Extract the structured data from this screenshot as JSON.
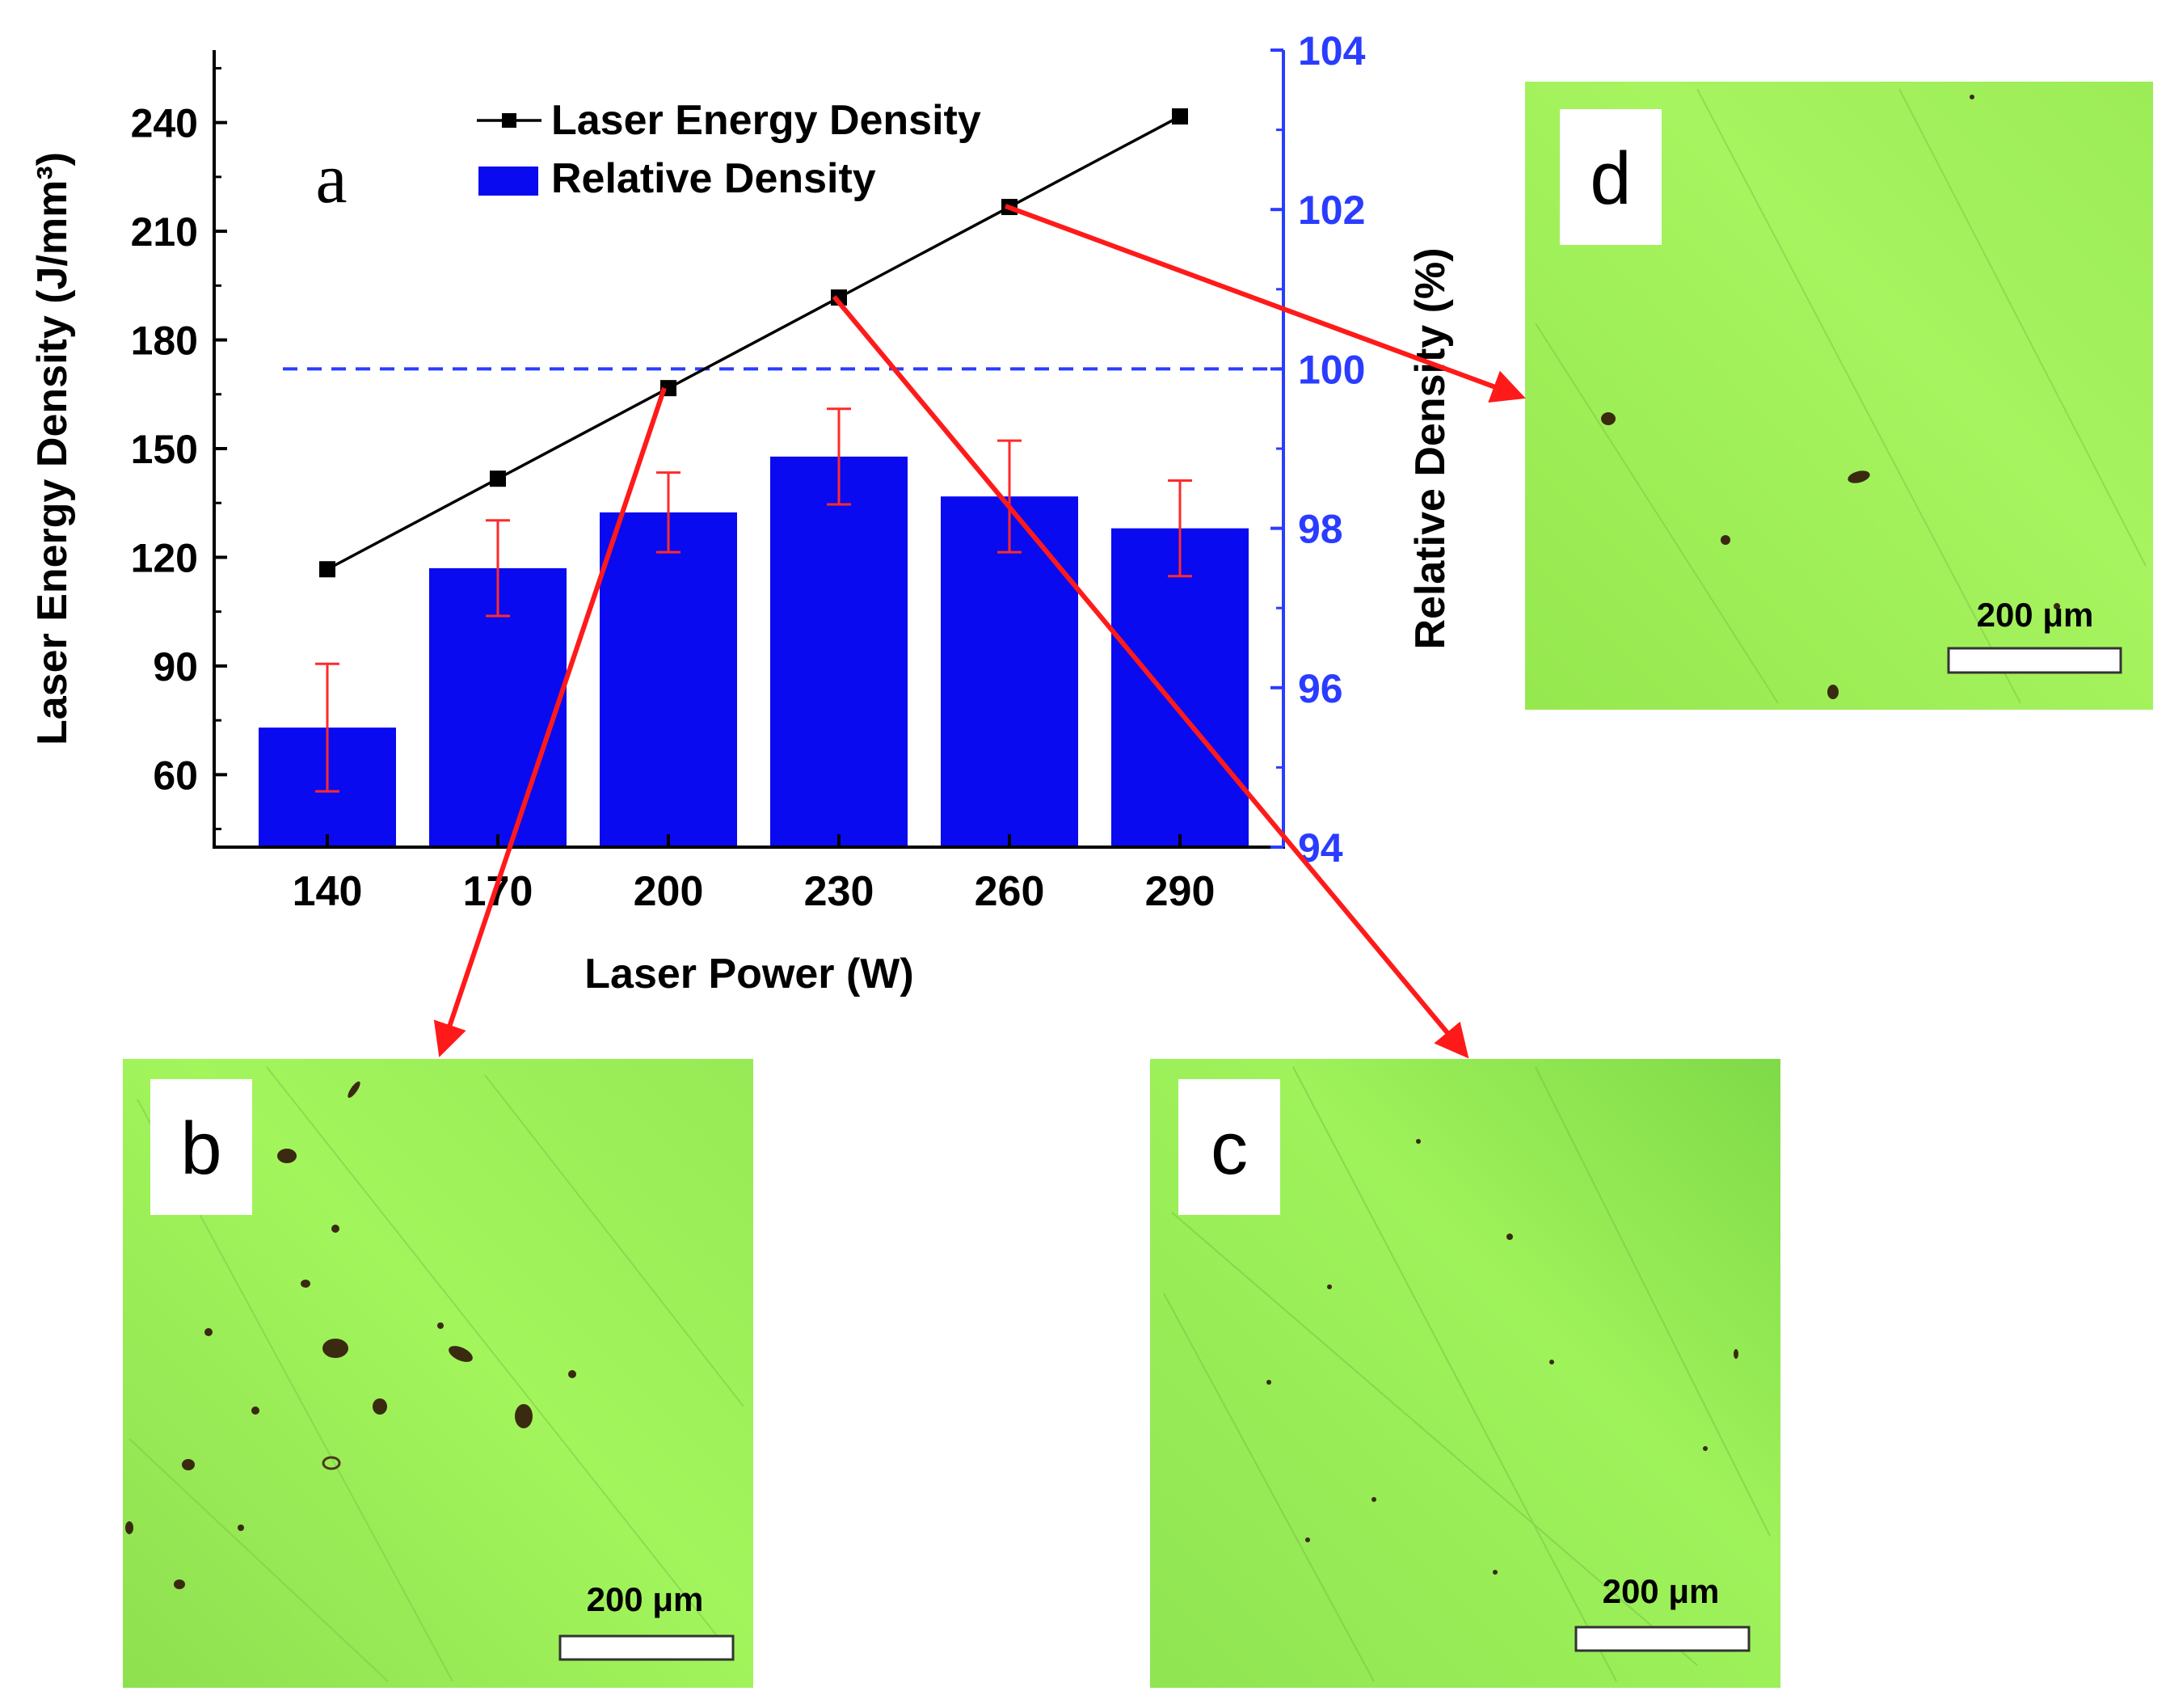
{
  "chart_data": {
    "type": "bar+line",
    "panel_label": "a",
    "categories": [
      "140",
      "170",
      "200",
      "230",
      "260",
      "290"
    ],
    "x": [
      140,
      170,
      200,
      230,
      260,
      290
    ],
    "xlabel": "Laser Power (W)",
    "ylabel_left": "Laser Energy Density (J/mm³)",
    "ylabel_right": "Relative Density (%)",
    "ylim_left": [
      40,
      260
    ],
    "yticks_left": [
      60,
      90,
      120,
      150,
      180,
      210,
      240
    ],
    "ylim_right": [
      94,
      104
    ],
    "yticks_right": [
      94,
      96,
      98,
      100,
      102,
      104
    ],
    "reference_line": {
      "axis": "right",
      "value": 100,
      "style": "dashed",
      "color": "#2a3cff"
    },
    "series": [
      {
        "name": "Laser Energy Density",
        "kind": "line",
        "axis": "left",
        "color": "#000000",
        "marker": "square",
        "values": [
          116.7,
          141.7,
          166.7,
          191.7,
          216.7,
          241.7
        ]
      },
      {
        "name": "Relative Density",
        "kind": "bar",
        "axis": "right",
        "color": "#0a0af0",
        "values": [
          95.5,
          97.5,
          98.2,
          98.9,
          98.4,
          98.0
        ],
        "errors": [
          0.8,
          0.6,
          0.5,
          0.6,
          0.7,
          0.6
        ],
        "error_color": "#ff2a2a"
      }
    ],
    "legend": [
      "Laser Energy Density",
      "Relative Density"
    ],
    "legend_position": "top-center"
  },
  "micrographs": [
    {
      "label": "b",
      "scale_bar": "200 μm",
      "linked_power": 200
    },
    {
      "label": "c",
      "scale_bar": "200 μm",
      "linked_power": 230
    },
    {
      "label": "d",
      "scale_bar": "200 μm",
      "linked_power": 260
    }
  ],
  "colors": {
    "axis_right": "#2a3cff",
    "arrow": "#ff1a1a",
    "micrograph_light": "#a2f45a",
    "micrograph_dark": "#6cc83c"
  }
}
